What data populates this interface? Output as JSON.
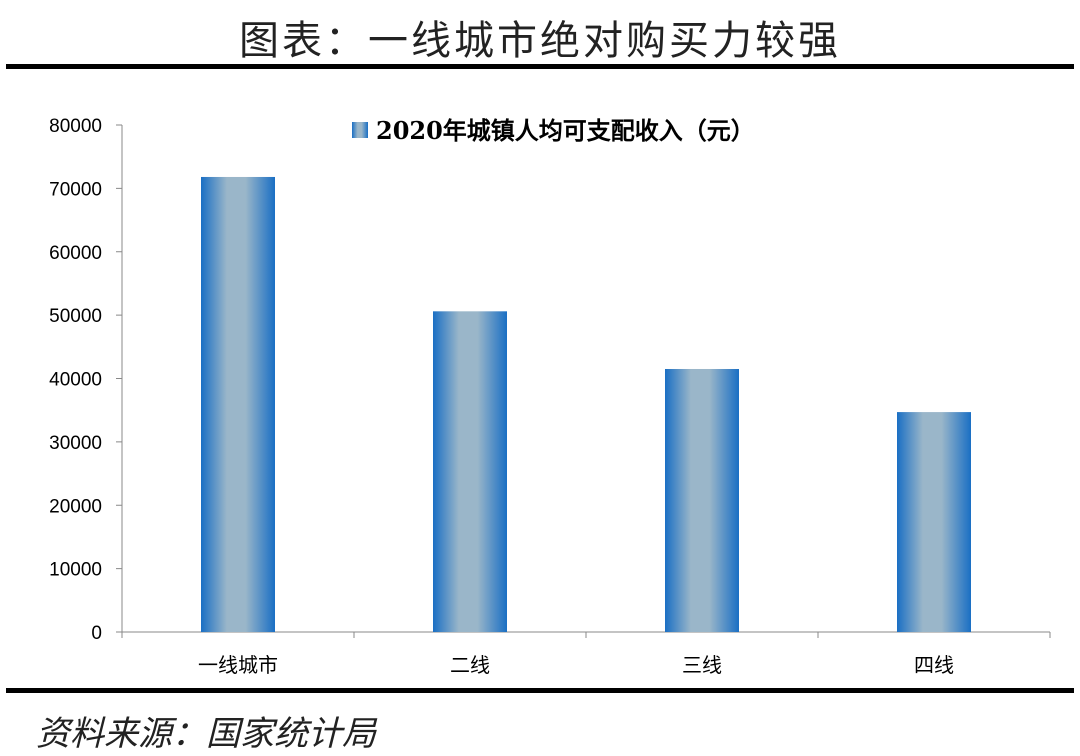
{
  "header": {
    "title": "图表：一线城市绝对购买力较强"
  },
  "footer": {
    "source": "资料来源：国家统计局"
  },
  "chart_data": {
    "type": "bar",
    "title": "",
    "categories": [
      "一线城市",
      "二线",
      "三线",
      "四线"
    ],
    "series": [
      {
        "name": "2020年城镇人均可支配收入（元）",
        "values": [
          71800,
          50600,
          41500,
          34700
        ]
      }
    ],
    "ylim": [
      0,
      80000
    ],
    "yticks": [
      0,
      10000,
      20000,
      30000,
      40000,
      50000,
      60000,
      70000,
      80000
    ],
    "grid": false,
    "legend": "top-center",
    "colors": {
      "bar_edge": "#1a6fc4",
      "bar_center": "#9ab6c9"
    }
  }
}
